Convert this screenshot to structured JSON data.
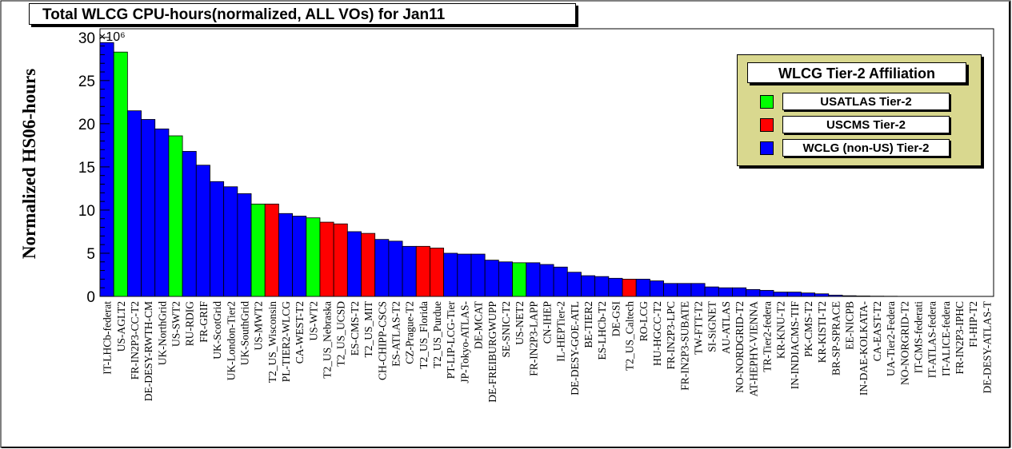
{
  "chart_data": {
    "type": "bar",
    "title": "Total WLCG CPU-hours(normalized, ALL VOs) for Jan11",
    "ylabel": "Normalized HS06-hours",
    "y_multiplier_label": "×10⁶",
    "ylim": [
      0,
      31
    ],
    "yticks": [
      0,
      5,
      10,
      15,
      20,
      25,
      30
    ],
    "legend": {
      "title": "WLCG Tier-2 Affiliation",
      "placement": "top-right",
      "entries": [
        {
          "name": "USATLAS Tier-2",
          "color": "#00ff00"
        },
        {
          "name": "USCMS Tier-2",
          "color": "#ff0000"
        },
        {
          "name": "WCLG (non-US) Tier-2",
          "color": "#0000ff"
        }
      ]
    },
    "colors": {
      "atlas": "#00ff00",
      "cms": "#ff0000",
      "other": "#0000ff"
    },
    "bars": [
      {
        "label": "IT-LHCb-federat",
        "value": 29.4,
        "group": "other"
      },
      {
        "label": "US-AGLT2",
        "value": 28.3,
        "group": "atlas"
      },
      {
        "label": "FR-IN2P3-CC-T2",
        "value": 21.5,
        "group": "other"
      },
      {
        "label": "DE-DESY-RWTH-CM",
        "value": 20.5,
        "group": "other"
      },
      {
        "label": "UK-NorthGrid",
        "value": 19.4,
        "group": "other"
      },
      {
        "label": "US-SWT2",
        "value": 18.6,
        "group": "atlas"
      },
      {
        "label": "RU-RDIG",
        "value": 16.8,
        "group": "other"
      },
      {
        "label": "FR-GRIF",
        "value": 15.2,
        "group": "other"
      },
      {
        "label": "UK-ScotGrid",
        "value": 13.3,
        "group": "other"
      },
      {
        "label": "UK-London-Tier2",
        "value": 12.7,
        "group": "other"
      },
      {
        "label": "UK-SouthGrid",
        "value": 11.9,
        "group": "other"
      },
      {
        "label": "US-MWT2",
        "value": 10.7,
        "group": "atlas"
      },
      {
        "label": "T2_US_Wisconsin",
        "value": 10.7,
        "group": "cms"
      },
      {
        "label": "PL-TIER2-WLCG",
        "value": 9.6,
        "group": "other"
      },
      {
        "label": "CA-WEST-T2",
        "value": 9.3,
        "group": "other"
      },
      {
        "label": "US-WT2",
        "value": 9.1,
        "group": "atlas"
      },
      {
        "label": "T2_US_Nebraska",
        "value": 8.6,
        "group": "cms"
      },
      {
        "label": "T2_US_UCSD",
        "value": 8.4,
        "group": "cms"
      },
      {
        "label": "ES-CMS-T2",
        "value": 7.5,
        "group": "other"
      },
      {
        "label": "T2_US_MIT",
        "value": 7.3,
        "group": "cms"
      },
      {
        "label": "CH-CHIPP-CSCS",
        "value": 6.6,
        "group": "other"
      },
      {
        "label": "ES-ATLAS-T2",
        "value": 6.4,
        "group": "other"
      },
      {
        "label": "CZ-Prague-T2",
        "value": 5.8,
        "group": "other"
      },
      {
        "label": "T2_US_Florida",
        "value": 5.8,
        "group": "cms"
      },
      {
        "label": "T2_US_Purdue",
        "value": 5.6,
        "group": "cms"
      },
      {
        "label": "PT-LIP-LCG-Tier",
        "value": 5.0,
        "group": "other"
      },
      {
        "label": "JP-Tokyo-ATLAS-",
        "value": 4.9,
        "group": "other"
      },
      {
        "label": "DE-MCAT",
        "value": 4.9,
        "group": "other"
      },
      {
        "label": "DE-FREIBURGWUPP",
        "value": 4.2,
        "group": "other"
      },
      {
        "label": "SE-SNIC-T2",
        "value": 4.0,
        "group": "other"
      },
      {
        "label": "US-NET2",
        "value": 3.9,
        "group": "atlas"
      },
      {
        "label": "FR-IN2P3-LAPP",
        "value": 3.9,
        "group": "other"
      },
      {
        "label": "CN-IHEP",
        "value": 3.7,
        "group": "other"
      },
      {
        "label": "IL-HEPTier-2",
        "value": 3.4,
        "group": "other"
      },
      {
        "label": "DE-DESY-GOE-ATL",
        "value": 2.8,
        "group": "other"
      },
      {
        "label": "BE-TIER2",
        "value": 2.4,
        "group": "other"
      },
      {
        "label": "ES-LHCb-T2",
        "value": 2.3,
        "group": "other"
      },
      {
        "label": "DE-GSI",
        "value": 2.1,
        "group": "other"
      },
      {
        "label": "T2_US_Caltech",
        "value": 2.0,
        "group": "cms"
      },
      {
        "label": "RO-LCG",
        "value": 2.0,
        "group": "other"
      },
      {
        "label": "HU-HGCC-T2",
        "value": 1.8,
        "group": "other"
      },
      {
        "label": "FR-IN2P3-LPC",
        "value": 1.5,
        "group": "other"
      },
      {
        "label": "FR-IN2P3-SUBATE",
        "value": 1.5,
        "group": "other"
      },
      {
        "label": "TW-FTT-T2",
        "value": 1.5,
        "group": "other"
      },
      {
        "label": "SI-SiGNET",
        "value": 1.1,
        "group": "other"
      },
      {
        "label": "AU-ATLAS",
        "value": 1.0,
        "group": "other"
      },
      {
        "label": "NO-NORDGRID-T2",
        "value": 1.0,
        "group": "other"
      },
      {
        "label": "AT-HEPHY-VIENNA",
        "value": 0.8,
        "group": "other"
      },
      {
        "label": "TR-Tier2-federa",
        "value": 0.7,
        "group": "other"
      },
      {
        "label": "KR-KNU-T2",
        "value": 0.5,
        "group": "other"
      },
      {
        "label": "IN-INDIACMS-TIF",
        "value": 0.5,
        "group": "other"
      },
      {
        "label": "PK-CMS-T2",
        "value": 0.4,
        "group": "other"
      },
      {
        "label": "KR-KISTI-T2",
        "value": 0.3,
        "group": "other"
      },
      {
        "label": "BR-SP-SPRACE",
        "value": 0.15,
        "group": "other"
      },
      {
        "label": "EE-NICPB",
        "value": 0.08,
        "group": "other"
      },
      {
        "label": "IN-DAE-KOLKATA-",
        "value": 0.05,
        "group": "other"
      },
      {
        "label": "CA-EAST-T2",
        "value": 0.03,
        "group": "other"
      },
      {
        "label": "UA-Tier2-Federa",
        "value": 0.02,
        "group": "other"
      },
      {
        "label": "NO-NORGRID-T2",
        "value": 0.01,
        "group": "other"
      },
      {
        "label": "IT-CMS-federati",
        "value": 0.01,
        "group": "other"
      },
      {
        "label": "IT-ATLAS-federa",
        "value": 0.01,
        "group": "other"
      },
      {
        "label": "IT-ALICE-federa",
        "value": 0.01,
        "group": "other"
      },
      {
        "label": "FR-IN2P3-IPHC",
        "value": 0.0,
        "group": "other"
      },
      {
        "label": "FI-HIP-T2",
        "value": 0.0,
        "group": "other"
      },
      {
        "label": "DE-DESY-ATLAS-T",
        "value": 0.0,
        "group": "other"
      }
    ]
  }
}
